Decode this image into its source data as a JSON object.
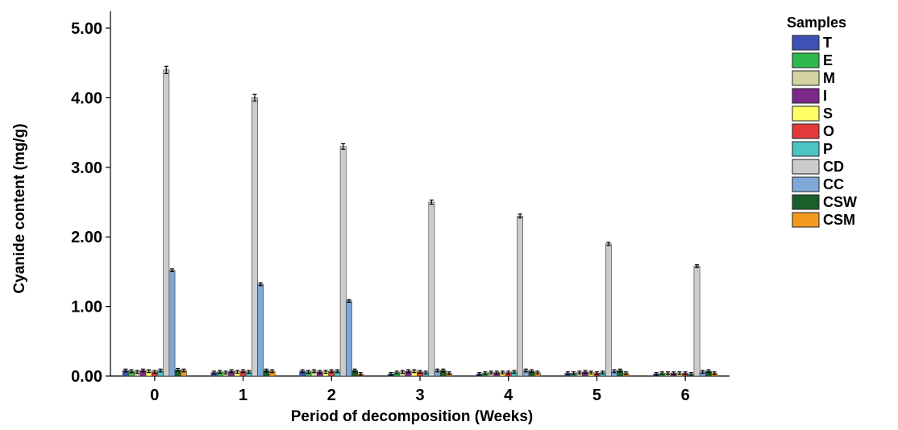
{
  "chart_data": {
    "type": "bar",
    "xlabel": "Period of decomposition (Weeks)",
    "ylabel": "Cyanide content (mg/g)",
    "ylim": [
      0,
      5
    ],
    "yticks": [
      "0.00",
      "1.00",
      "2.00",
      "3.00",
      "4.00",
      "5.00"
    ],
    "categories": [
      "0",
      "1",
      "2",
      "3",
      "4",
      "5",
      "6"
    ],
    "legend_title": "Samples",
    "legend_position": "right",
    "error_bars": true,
    "series": [
      {
        "name": "T",
        "color": "#3f51b5",
        "values": [
          0.08,
          0.05,
          0.07,
          0.03,
          0.03,
          0.04,
          0.03
        ]
      },
      {
        "name": "E",
        "color": "#2eb84b",
        "values": [
          0.07,
          0.06,
          0.06,
          0.05,
          0.04,
          0.04,
          0.04
        ]
      },
      {
        "name": "M",
        "color": "#d4d4a0",
        "values": [
          0.06,
          0.05,
          0.07,
          0.06,
          0.05,
          0.05,
          0.04
        ]
      },
      {
        "name": "I",
        "color": "#7b2a8a",
        "values": [
          0.08,
          0.07,
          0.06,
          0.07,
          0.05,
          0.06,
          0.04
        ]
      },
      {
        "name": "S",
        "color": "#ffff66",
        "values": [
          0.07,
          0.06,
          0.06,
          0.07,
          0.05,
          0.05,
          0.04
        ]
      },
      {
        "name": "O",
        "color": "#e23a3a",
        "values": [
          0.06,
          0.07,
          0.07,
          0.06,
          0.05,
          0.04,
          0.04
        ]
      },
      {
        "name": "P",
        "color": "#4cc4c4",
        "values": [
          0.08,
          0.06,
          0.07,
          0.05,
          0.06,
          0.05,
          0.03
        ]
      },
      {
        "name": "CD",
        "color": "#cccccc",
        "values": [
          4.4,
          4.0,
          3.3,
          2.5,
          2.3,
          1.9,
          1.58
        ]
      },
      {
        "name": "CC",
        "color": "#7fa8d8",
        "values": [
          1.52,
          1.32,
          1.08,
          0.08,
          0.08,
          0.07,
          0.06
        ]
      },
      {
        "name": "CSW",
        "color": "#1b5e2a",
        "values": [
          0.09,
          0.08,
          0.08,
          0.08,
          0.07,
          0.08,
          0.07
        ]
      },
      {
        "name": "CSM",
        "color": "#f39a1e",
        "values": [
          0.08,
          0.07,
          0.03,
          0.04,
          0.05,
          0.04,
          0.04
        ]
      }
    ]
  }
}
